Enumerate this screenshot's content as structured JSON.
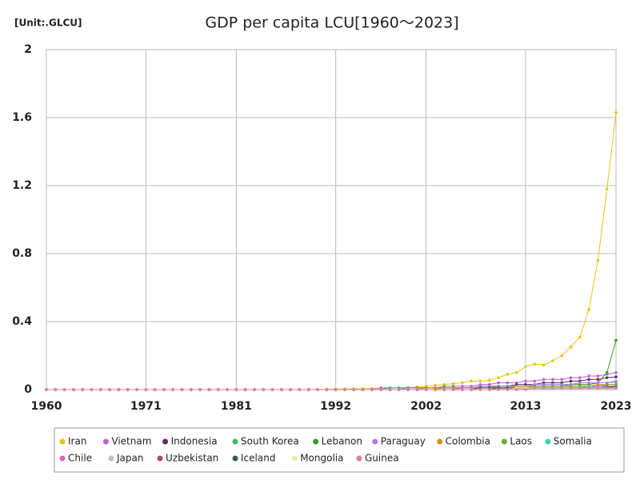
{
  "chart_data": {
    "type": "line",
    "title": "GDP per capita LCU[1960～2023]",
    "unit_label": "[Unit:.GLCU]",
    "x": [
      1960,
      1961,
      1962,
      1963,
      1964,
      1965,
      1966,
      1967,
      1968,
      1969,
      1970,
      1971,
      1972,
      1973,
      1974,
      1975,
      1976,
      1977,
      1978,
      1979,
      1980,
      1981,
      1982,
      1983,
      1984,
      1985,
      1986,
      1987,
      1988,
      1989,
      1990,
      1991,
      1992,
      1993,
      1994,
      1995,
      1996,
      1997,
      1998,
      1999,
      2000,
      2001,
      2002,
      2003,
      2004,
      2005,
      2006,
      2007,
      2008,
      2009,
      2010,
      2011,
      2012,
      2013,
      2014,
      2015,
      2016,
      2017,
      2018,
      2019,
      2020,
      2021,
      2022,
      2023
    ],
    "xlim": [
      1960,
      2023
    ],
    "xticks": [
      1960,
      1971,
      1981,
      1992,
      2002,
      2013,
      2023
    ],
    "ylim": [
      0,
      2
    ],
    "yticks": [
      0,
      0.4,
      0.8,
      1.2,
      1.6,
      2
    ],
    "grid": true,
    "legend": "bottom",
    "series": [
      {
        "name": "Iran",
        "color": "#e6c619",
        "values": [
          0,
          0,
          0,
          0,
          0,
          0,
          0,
          0,
          0,
          0,
          0,
          0,
          0,
          0,
          0,
          0,
          0,
          0,
          0,
          0,
          0,
          0,
          0,
          0,
          0,
          0,
          0,
          0,
          0,
          0,
          0.002,
          0.002,
          0.003,
          0.004,
          0.005,
          0.006,
          0.007,
          0.008,
          0.009,
          0.01,
          0.012,
          0.015,
          0.02,
          0.025,
          0.03,
          0.035,
          0.04,
          0.05,
          0.05,
          0.055,
          0.07,
          0.09,
          0.1,
          0.135,
          0.15,
          0.145,
          0.17,
          0.2,
          0.25,
          0.31,
          0.47,
          0.76,
          1.18,
          1.63
        ]
      },
      {
        "name": "Vietnam",
        "color": "#c061cb",
        "values": [
          0,
          0,
          0,
          0,
          0,
          0,
          0,
          0,
          0,
          0,
          0,
          0,
          0,
          0,
          0,
          0,
          0,
          0,
          0,
          0,
          0,
          0,
          0,
          0,
          0,
          0,
          0,
          0,
          0,
          0,
          0,
          0,
          0,
          0,
          0,
          0,
          0,
          0.01,
          0.01,
          0.01,
          0.01,
          0.01,
          0.01,
          0.01,
          0.02,
          0.02,
          0.02,
          0.02,
          0.03,
          0.03,
          0.04,
          0.04,
          0.04,
          0.05,
          0.05,
          0.06,
          0.06,
          0.06,
          0.07,
          0.07,
          0.08,
          0.08,
          0.09,
          0.1
        ]
      },
      {
        "name": "Indonesia",
        "color": "#5c2a6e",
        "values": [
          0,
          0,
          0,
          0,
          0,
          0,
          0,
          0,
          0,
          0,
          0,
          0,
          0,
          0,
          0,
          0,
          0,
          0,
          0,
          0,
          0,
          0,
          0,
          0,
          0,
          0,
          0,
          0,
          0,
          0,
          0,
          0,
          0,
          0,
          0,
          0,
          0,
          0,
          0,
          0,
          0.01,
          0.01,
          0.01,
          0.01,
          0.01,
          0.01,
          0.01,
          0.01,
          0.02,
          0.02,
          0.02,
          0.02,
          0.03,
          0.03,
          0.03,
          0.04,
          0.04,
          0.04,
          0.05,
          0.05,
          0.06,
          0.06,
          0.07,
          0.075
        ]
      },
      {
        "name": "South Korea",
        "color": "#3dbb6e",
        "values": [
          0,
          0,
          0,
          0,
          0,
          0,
          0,
          0,
          0,
          0,
          0,
          0,
          0,
          0,
          0,
          0,
          0,
          0,
          0,
          0,
          0,
          0,
          0,
          0,
          0,
          0,
          0,
          0,
          0,
          0,
          0,
          0,
          0,
          0,
          0,
          0,
          0,
          0,
          0.01,
          0.01,
          0.01,
          0.01,
          0.01,
          0.01,
          0.01,
          0.01,
          0.01,
          0.01,
          0.02,
          0.02,
          0.02,
          0.02,
          0.02,
          0.02,
          0.03,
          0.03,
          0.03,
          0.03,
          0.03,
          0.04,
          0.04,
          0.04,
          0.04,
          0.045
        ]
      },
      {
        "name": "Lebanon",
        "color": "#3a9a1e",
        "values": [
          0,
          0,
          0,
          0,
          0,
          0,
          0,
          0,
          0,
          0,
          0,
          0,
          0,
          0,
          0,
          0,
          0,
          0,
          0,
          0,
          0,
          0,
          0,
          0,
          0,
          0,
          0,
          0,
          0,
          0,
          0,
          0,
          0,
          0,
          0,
          0,
          0,
          0,
          0,
          0,
          0.01,
          0.01,
          0.01,
          0.01,
          0.01,
          0.01,
          0.01,
          0.01,
          0.01,
          0.01,
          0.02,
          0.02,
          0.02,
          0.02,
          0.02,
          0.02,
          0.02,
          0.02,
          0.03,
          0.03,
          0.03,
          0.04,
          0.1,
          0.29
        ]
      },
      {
        "name": "Paraguay",
        "color": "#b57ae6",
        "values": [
          0,
          0,
          0,
          0,
          0,
          0,
          0,
          0,
          0,
          0,
          0,
          0,
          0,
          0,
          0,
          0,
          0,
          0,
          0,
          0,
          0,
          0,
          0,
          0,
          0,
          0,
          0,
          0,
          0,
          0,
          0,
          0,
          0,
          0,
          0,
          0,
          0,
          0,
          0,
          0,
          0.01,
          0.01,
          0.01,
          0.01,
          0.01,
          0.01,
          0.01,
          0.01,
          0.02,
          0.02,
          0.02,
          0.02,
          0.02,
          0.02,
          0.03,
          0.03,
          0.03,
          0.03,
          0.03,
          0.04,
          0.04,
          0.04,
          0.04,
          0.05
        ]
      },
      {
        "name": "Colombia",
        "color": "#d4901a",
        "values": [
          0,
          0,
          0,
          0,
          0,
          0,
          0,
          0,
          0,
          0,
          0,
          0,
          0,
          0,
          0,
          0,
          0,
          0,
          0,
          0,
          0,
          0,
          0,
          0,
          0,
          0,
          0,
          0,
          0,
          0,
          0,
          0,
          0,
          0,
          0,
          0,
          0,
          0,
          0,
          0,
          0,
          0,
          0.01,
          0.01,
          0.01,
          0.01,
          0.01,
          0.01,
          0.01,
          0.01,
          0.01,
          0.01,
          0.02,
          0.02,
          0.02,
          0.02,
          0.02,
          0.02,
          0.02,
          0.02,
          0.02,
          0.03,
          0.03,
          0.03
        ]
      },
      {
        "name": "Laos",
        "color": "#6aa83a",
        "values": [
          0,
          0,
          0,
          0,
          0,
          0,
          0,
          0,
          0,
          0,
          0,
          0,
          0,
          0,
          0,
          0,
          0,
          0,
          0,
          0,
          0,
          0,
          0,
          0,
          0,
          0,
          0,
          0,
          0,
          0,
          0,
          0,
          0,
          0,
          0,
          0,
          0,
          0,
          0,
          0,
          0,
          0,
          0,
          0,
          0.01,
          0.01,
          0.01,
          0.01,
          0.01,
          0.01,
          0.01,
          0.01,
          0.01,
          0.01,
          0.02,
          0.02,
          0.02,
          0.02,
          0.02,
          0.02,
          0.02,
          0.02,
          0.03,
          0.03
        ]
      },
      {
        "name": "Somalia",
        "color": "#3ccdb0",
        "values": [
          0,
          0,
          0,
          0,
          0,
          0,
          0,
          0,
          0,
          0,
          0,
          0,
          0,
          0,
          0,
          0,
          0,
          0,
          0,
          0,
          0,
          0,
          0,
          0,
          0,
          0,
          0,
          0,
          0,
          0,
          0,
          0,
          0,
          0,
          0,
          0,
          0,
          0,
          0,
          0,
          0,
          0,
          0,
          0,
          0,
          0,
          0.01,
          0.01,
          0.01,
          0.01,
          0.01,
          0.01,
          0.01,
          0.01,
          0.01,
          0.01,
          0.01,
          0.01,
          0.01,
          0.01,
          0.02,
          0.02,
          0.02,
          0.02
        ]
      },
      {
        "name": "Chile",
        "color": "#e060c0",
        "values": [
          0,
          0,
          0,
          0,
          0,
          0,
          0,
          0,
          0,
          0,
          0,
          0,
          0,
          0,
          0,
          0,
          0,
          0,
          0,
          0,
          0,
          0,
          0,
          0,
          0,
          0,
          0,
          0,
          0,
          0,
          0,
          0,
          0,
          0,
          0,
          0,
          0,
          0,
          0,
          0,
          0,
          0,
          0,
          0,
          0,
          0,
          0.01,
          0.01,
          0.01,
          0.01,
          0.01,
          0.01,
          0.01,
          0.01,
          0.01,
          0.01,
          0.01,
          0.01,
          0.01,
          0.01,
          0.01,
          0.02,
          0.02,
          0.02
        ]
      },
      {
        "name": "Japan",
        "color": "#c0c0c0",
        "values": [
          0,
          0,
          0,
          0,
          0,
          0,
          0,
          0,
          0,
          0,
          0,
          0,
          0,
          0,
          0,
          0,
          0,
          0,
          0,
          0,
          0,
          0,
          0,
          0,
          0,
          0,
          0,
          0,
          0,
          0,
          0,
          0,
          0,
          0,
          0,
          0,
          0,
          0,
          0,
          0,
          0,
          0,
          0,
          0,
          0,
          0,
          0,
          0,
          0,
          0,
          0.005,
          0.005,
          0.005,
          0.005,
          0.005,
          0.005,
          0.005,
          0.005,
          0.005,
          0.005,
          0.005,
          0.005,
          0.005,
          0.005
        ]
      },
      {
        "name": "Uzbekistan",
        "color": "#a85050",
        "values": [
          0,
          0,
          0,
          0,
          0,
          0,
          0,
          0,
          0,
          0,
          0,
          0,
          0,
          0,
          0,
          0,
          0,
          0,
          0,
          0,
          0,
          0,
          0,
          0,
          0,
          0,
          0,
          0,
          0,
          0,
          0,
          0,
          0,
          0,
          0,
          0,
          0,
          0,
          0,
          0,
          0,
          0,
          0,
          0,
          0,
          0,
          0,
          0,
          0,
          0,
          0.01,
          0.01,
          0.01,
          0.01,
          0.01,
          0.01,
          0.01,
          0.01,
          0.01,
          0.01,
          0.01,
          0.01,
          0.015,
          0.015
        ]
      },
      {
        "name": "Iceland",
        "color": "#3d5c4c",
        "values": [
          0,
          0,
          0,
          0,
          0,
          0,
          0,
          0,
          0,
          0,
          0,
          0,
          0,
          0,
          0,
          0,
          0,
          0,
          0,
          0,
          0,
          0,
          0,
          0,
          0,
          0,
          0,
          0,
          0,
          0,
          0,
          0,
          0,
          0,
          0,
          0,
          0,
          0,
          0,
          0,
          0,
          0,
          0,
          0,
          0,
          0,
          0,
          0,
          0.01,
          0.01,
          0.01,
          0.01,
          0.01,
          0.01,
          0.01,
          0.01,
          0.01,
          0.01,
          0.01,
          0.01,
          0.01,
          0.01,
          0.015,
          0.015
        ]
      },
      {
        "name": "Mongolia",
        "color": "#eef0a0",
        "values": [
          0,
          0,
          0,
          0,
          0,
          0,
          0,
          0,
          0,
          0,
          0,
          0,
          0,
          0,
          0,
          0,
          0,
          0,
          0,
          0,
          0,
          0,
          0,
          0,
          0,
          0,
          0,
          0,
          0,
          0,
          0,
          0,
          0,
          0,
          0,
          0,
          0,
          0,
          0,
          0,
          0,
          0,
          0,
          0,
          0,
          0,
          0,
          0,
          0,
          0,
          0,
          0,
          0.01,
          0.01,
          0.01,
          0.01,
          0.01,
          0.01,
          0.01,
          0.01,
          0.01,
          0.01,
          0.01,
          0.01
        ]
      },
      {
        "name": "Guinea",
        "color": "#d87fa0",
        "values": [
          0,
          0,
          0,
          0,
          0,
          0,
          0,
          0,
          0,
          0,
          0,
          0,
          0,
          0,
          0,
          0,
          0,
          0,
          0,
          0,
          0,
          0,
          0,
          0,
          0,
          0,
          0,
          0,
          0,
          0,
          0,
          0,
          0,
          0,
          0,
          0,
          0,
          0,
          0,
          0,
          0,
          0,
          0,
          0,
          0,
          0,
          0,
          0,
          0,
          0,
          0,
          0,
          0,
          0,
          0.01,
          0.01,
          0.01,
          0.01,
          0.01,
          0.01,
          0.01,
          0.01,
          0.01,
          0.01
        ]
      }
    ]
  }
}
